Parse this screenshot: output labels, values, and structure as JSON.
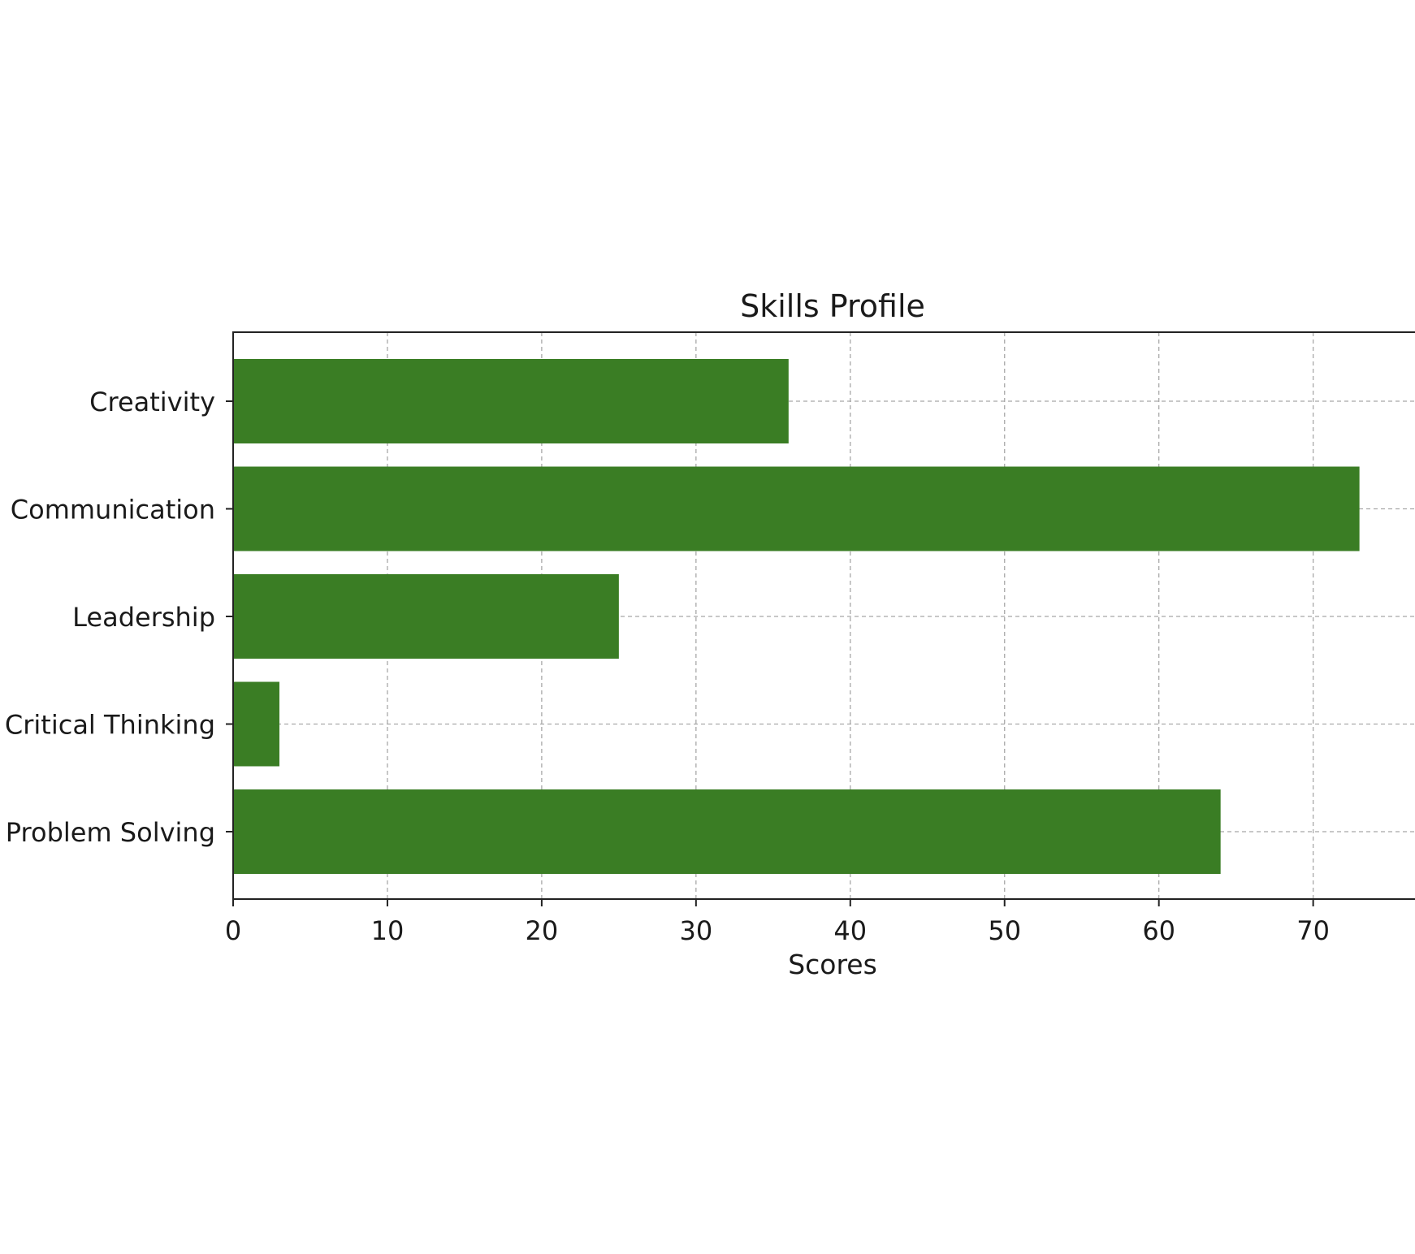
{
  "chart_data": {
    "type": "bar",
    "orientation": "horizontal",
    "title": "Skills Profile",
    "xlabel": "Scores",
    "ylabel": "",
    "categories": [
      "Creativity",
      "Communication",
      "Leadership",
      "Critical Thinking",
      "Problem Solving"
    ],
    "values": [
      36,
      73,
      25,
      3,
      64
    ],
    "xlim": [
      0,
      76.6
    ],
    "xticks": [
      0,
      10,
      20,
      30,
      40,
      50,
      60,
      70
    ],
    "grid": true,
    "legend": "none",
    "bar_color": "#3a7d24"
  }
}
